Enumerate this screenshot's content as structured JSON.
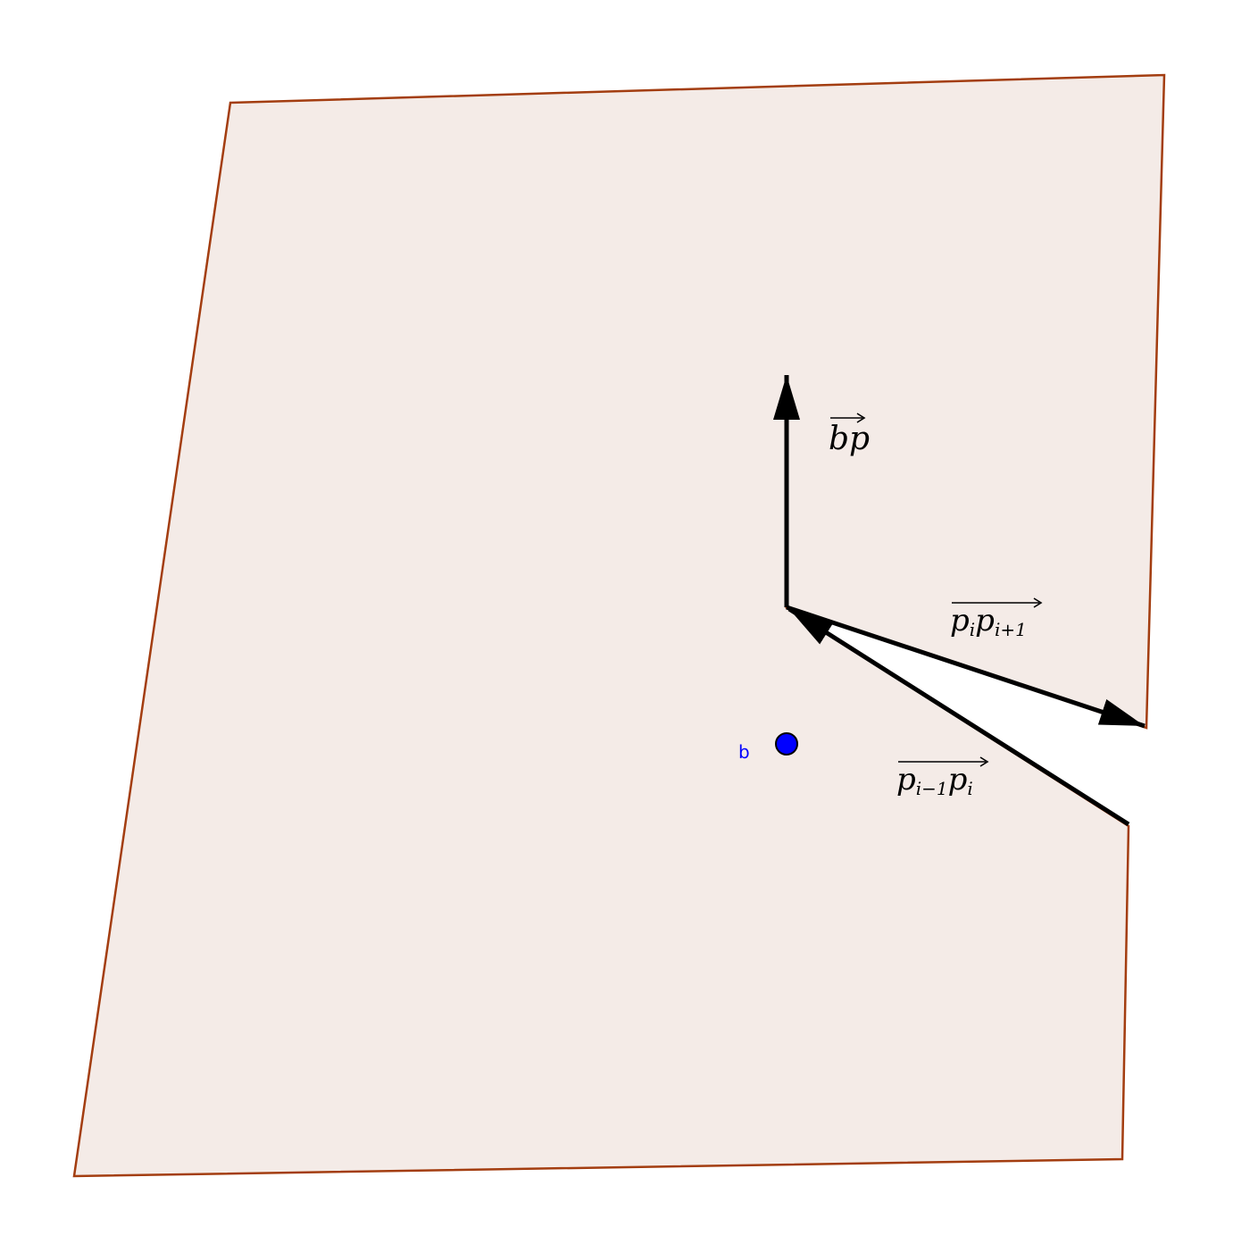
{
  "colors": {
    "polygon_fill": "#f4ebe7",
    "polygon_stroke": "#a33d10",
    "vector": "#000000",
    "point_fill": "#0000ff",
    "point_stroke": "#000000",
    "point_label": "#0000ff"
  },
  "point": {
    "label": "b"
  },
  "vectors": {
    "bp": {
      "base": "b",
      "head": "p"
    },
    "pi_pi1": {
      "base": "p",
      "base_sub": "i",
      "head": "p",
      "head_sub": "i+1"
    },
    "pim1_pi": {
      "base": "p",
      "base_sub": "i−1",
      "head": "p",
      "head_sub": "i"
    }
  }
}
